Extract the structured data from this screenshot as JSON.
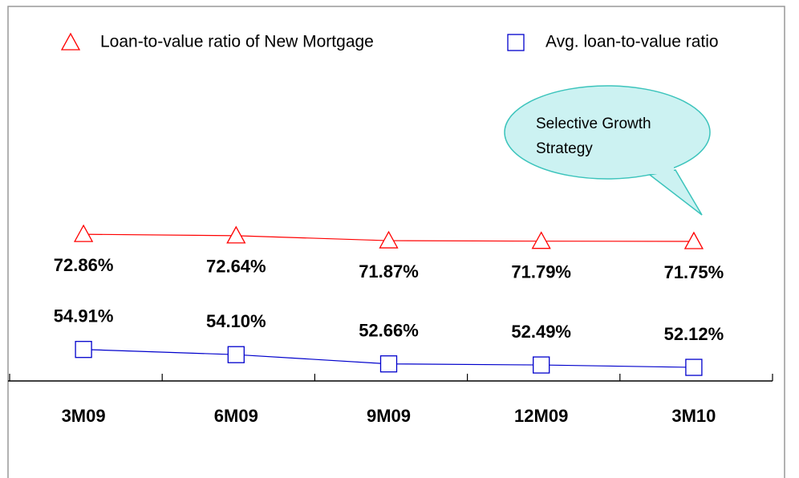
{
  "chart_data": {
    "type": "line",
    "categories": [
      "3M09",
      "6M09",
      "9M09",
      "12M09",
      "3M10"
    ],
    "series": [
      {
        "name": "Loan-to-value ratio of New Mortgage",
        "color": "#ff0000",
        "marker": "triangle",
        "values": [
          72.86,
          72.64,
          71.87,
          71.79,
          71.75
        ],
        "value_labels": [
          "72.86%",
          "72.64%",
          "71.87%",
          "71.79%",
          "71.75%"
        ]
      },
      {
        "name": "Avg. loan-to-value ratio",
        "color": "#0000cc",
        "marker": "square",
        "values": [
          54.91,
          54.1,
          52.66,
          52.49,
          52.12
        ],
        "value_labels": [
          "54.91%",
          "54.10%",
          "52.66%",
          "52.49%",
          "52.12%"
        ]
      }
    ],
    "ylim": [
      50,
      105
    ],
    "annotation": [
      "Selective Growth",
      "Strategy"
    ]
  }
}
